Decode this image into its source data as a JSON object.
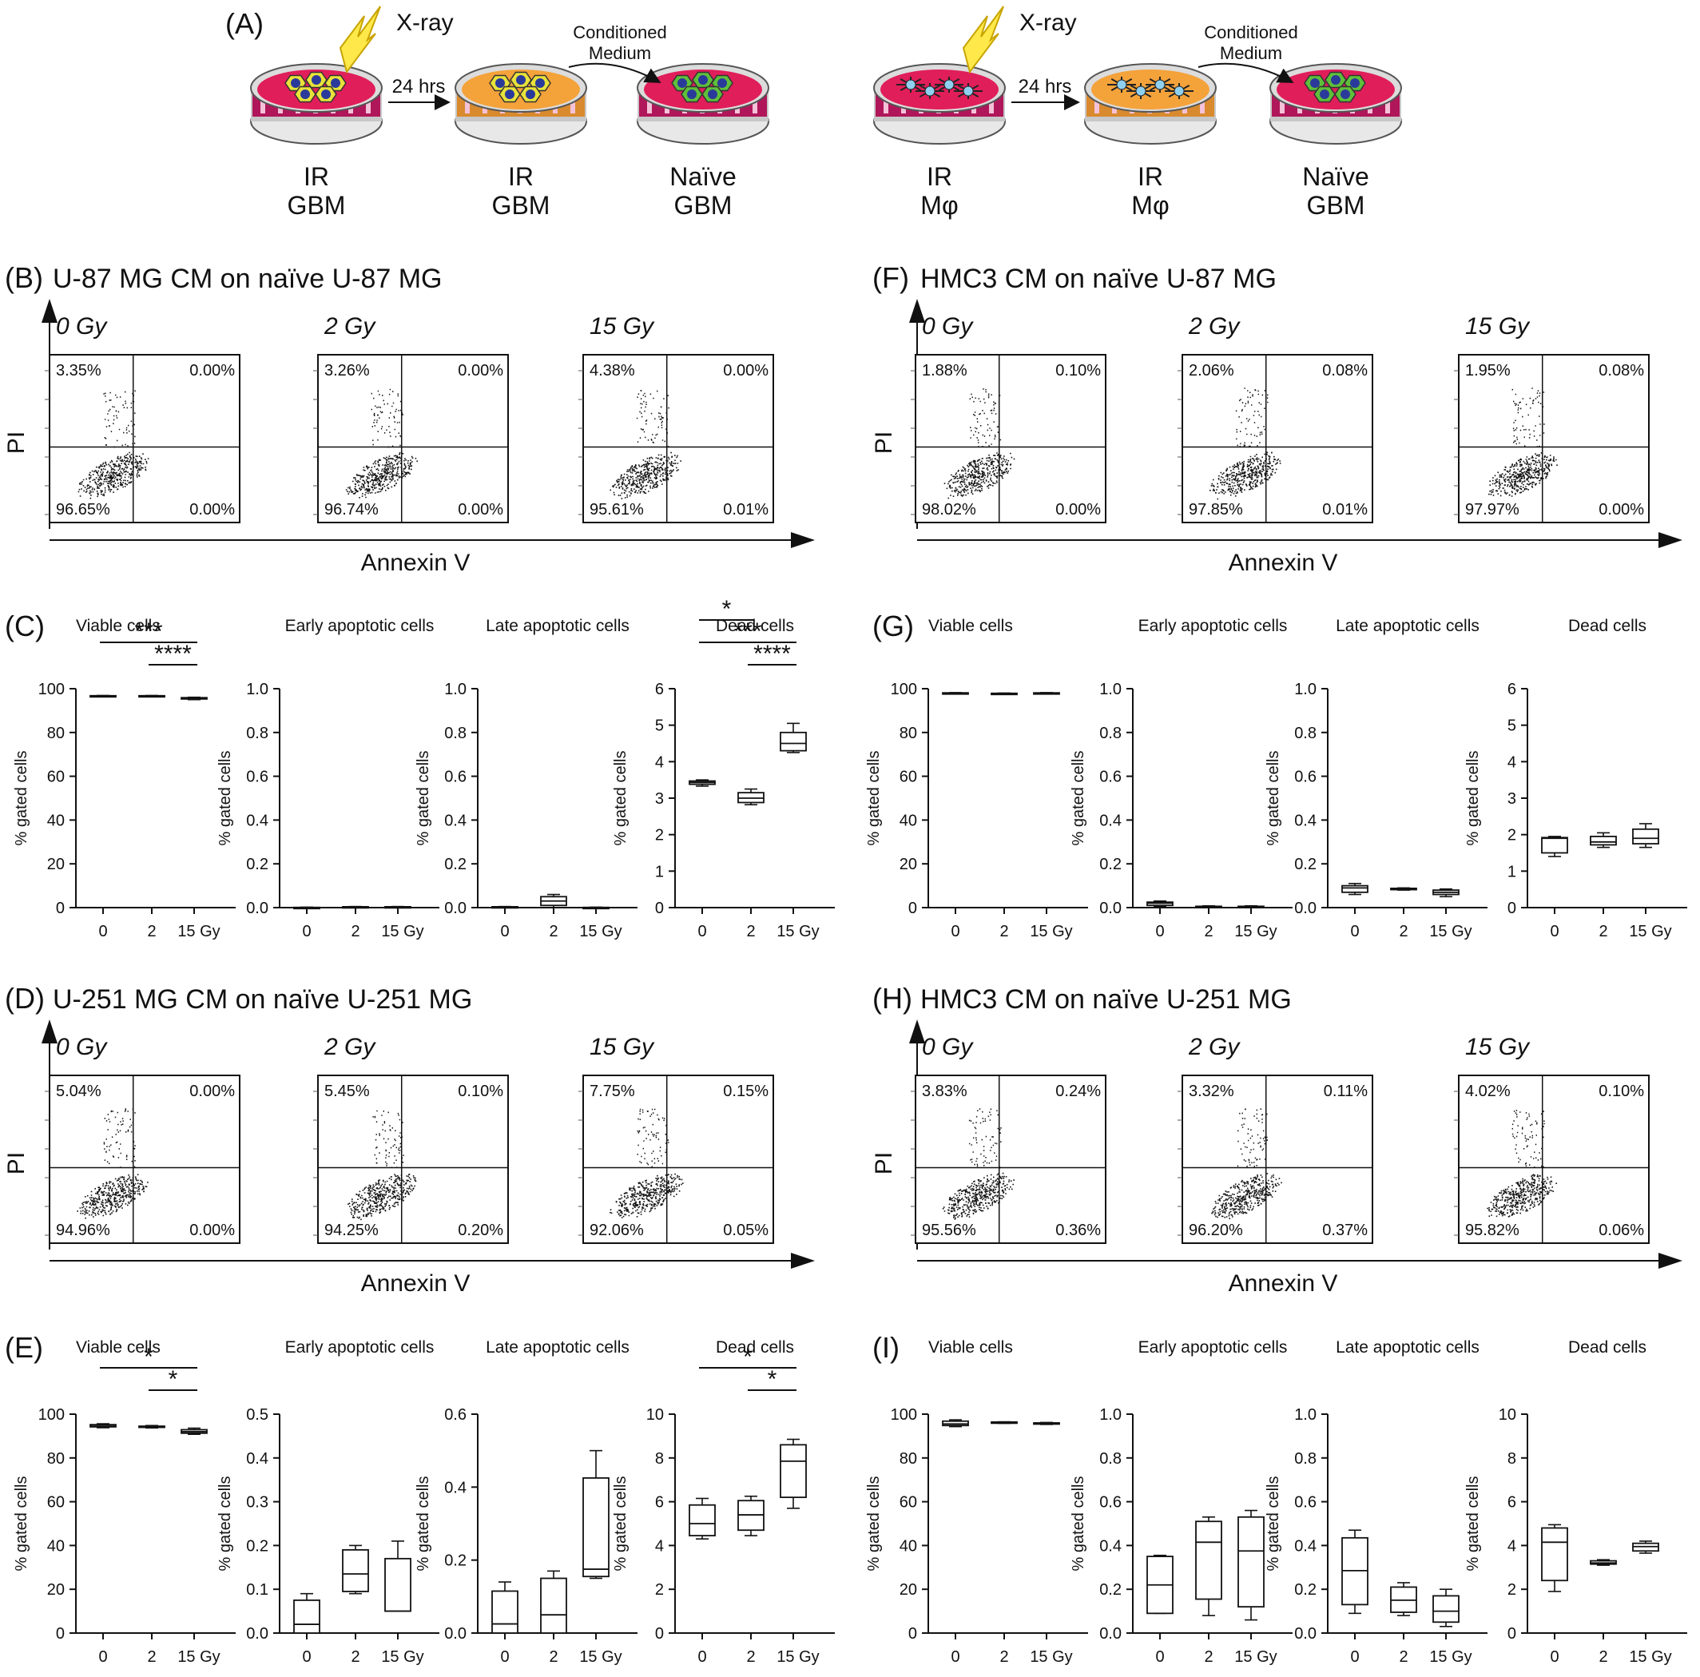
{
  "schematic": {
    "panel_label": "(A)",
    "xray": "X-ray",
    "time": "24 hrs",
    "cm_line1": "Conditioned",
    "cm_line2": "Medium",
    "left": [
      {
        "l1": "IR",
        "l2": "GBM"
      },
      {
        "l1": "IR",
        "l2": "GBM"
      },
      {
        "l1": "Naïve",
        "l2": "GBM"
      }
    ],
    "right": [
      {
        "l1": "IR",
        "l2": "Mφ"
      },
      {
        "l1": "IR",
        "l2": "Mφ"
      },
      {
        "l1": "Naïve",
        "l2": "GBM"
      }
    ]
  },
  "common": {
    "y_axis_flow": "PI",
    "x_axis_flow": "Annexin V",
    "y_axis_box": "% gated cells"
  },
  "flow_panels": [
    {
      "label": "(B)",
      "title": "U-87 MG CM on naïve U-87 MG",
      "plots": [
        {
          "dose": "0 Gy",
          "ul": "3.35%",
          "ur": "0.00%",
          "ll": "96.65%",
          "lr": "0.00%"
        },
        {
          "dose": "2 Gy",
          "ul": "3.26%",
          "ur": "0.00%",
          "ll": "96.74%",
          "lr": "0.00%"
        },
        {
          "dose": "15 Gy",
          "ul": "4.38%",
          "ur": "0.00%",
          "ll": "95.61%",
          "lr": "0.01%"
        }
      ]
    },
    {
      "label": "(F)",
      "title": "HMC3 CM on naïve U-87 MG",
      "plots": [
        {
          "dose": "0 Gy",
          "ul": "1.88%",
          "ur": "0.10%",
          "ll": "98.02%",
          "lr": "0.00%"
        },
        {
          "dose": "2 Gy",
          "ul": "2.06%",
          "ur": "0.08%",
          "ll": "97.85%",
          "lr": "0.01%"
        },
        {
          "dose": "15 Gy",
          "ul": "1.95%",
          "ur": "0.08%",
          "ll": "97.97%",
          "lr": "0.00%"
        }
      ]
    },
    {
      "label": "(D)",
      "title": "U-251 MG CM on naïve U-251 MG",
      "plots": [
        {
          "dose": "0 Gy",
          "ul": "5.04%",
          "ur": "0.00%",
          "ll": "94.96%",
          "lr": "0.00%"
        },
        {
          "dose": "2 Gy",
          "ul": "5.45%",
          "ur": "0.10%",
          "ll": "94.25%",
          "lr": "0.20%"
        },
        {
          "dose": "15 Gy",
          "ul": "7.75%",
          "ur": "0.15%",
          "ll": "92.06%",
          "lr": "0.05%"
        }
      ]
    },
    {
      "label": "(H)",
      "title": "HMC3 CM on naïve U-251 MG",
      "plots": [
        {
          "dose": "0 Gy",
          "ul": "3.83%",
          "ur": "0.24%",
          "ll": "95.56%",
          "lr": "0.36%"
        },
        {
          "dose": "2 Gy",
          "ul": "3.32%",
          "ur": "0.11%",
          "ll": "96.20%",
          "lr": "0.37%"
        },
        {
          "dose": "15 Gy",
          "ul": "4.02%",
          "ur": "0.10%",
          "ll": "95.82%",
          "lr": "0.06%"
        }
      ]
    }
  ],
  "chart_data": [
    {
      "panel": "(C)",
      "type": "box",
      "categories": [
        "0",
        "2",
        "15 Gy"
      ],
      "charts": [
        {
          "title": "Viable cells",
          "ylim": [
            0,
            100
          ],
          "yticks": [
            "0",
            "20",
            "40",
            "60",
            "80",
            "100"
          ],
          "boxes": [
            [
              96.4,
              96.5,
              96.65,
              96.8,
              96.9
            ],
            [
              96.6,
              96.7,
              96.74,
              96.8,
              96.9
            ],
            [
              95.0,
              95.3,
              95.6,
              95.9,
              96.1
            ]
          ],
          "sig": [
            {
              "from": 0,
              "to": 2,
              "stars": "***"
            },
            {
              "from": 1,
              "to": 2,
              "stars": "****"
            }
          ]
        },
        {
          "title": "Early apoptotic cells",
          "ylim": [
            0,
            1.0
          ],
          "yticks": [
            "0.0",
            "0.2",
            "0.4",
            "0.6",
            "0.8",
            "1.0"
          ],
          "boxes": [
            [
              0,
              0,
              0,
              0.001,
              0.002
            ],
            [
              0,
              0.001,
              0.002,
              0.004,
              0.005
            ],
            [
              0,
              0.001,
              0.002,
              0.004,
              0.005
            ]
          ],
          "sig": []
        },
        {
          "title": "Late apoptotic cells",
          "ylim": [
            0,
            1.0
          ],
          "yticks": [
            "0.0",
            "0.2",
            "0.4",
            "0.6",
            "0.8",
            "1.0"
          ],
          "boxes": [
            [
              0,
              0,
              0.002,
              0.004,
              0.005
            ],
            [
              0,
              0.01,
              0.03,
              0.05,
              0.06
            ],
            [
              0,
              0,
              0,
              0.001,
              0.002
            ]
          ],
          "sig": []
        },
        {
          "title": "Dead cells",
          "ylim": [
            0,
            6
          ],
          "yticks": [
            "0",
            "1",
            "2",
            "3",
            "4",
            "5",
            "6"
          ],
          "boxes": [
            [
              3.33,
              3.38,
              3.43,
              3.47,
              3.5
            ],
            [
              2.82,
              2.88,
              3.0,
              3.15,
              3.25
            ],
            [
              4.25,
              4.3,
              4.5,
              4.8,
              5.05
            ]
          ],
          "sig": [
            {
              "from": 0,
              "to": 1,
              "stars": "*"
            },
            {
              "from": 0,
              "to": 2,
              "stars": "***"
            },
            {
              "from": 1,
              "to": 2,
              "stars": "****"
            }
          ]
        }
      ]
    },
    {
      "panel": "(G)",
      "type": "box",
      "categories": [
        "0",
        "2",
        "15 Gy"
      ],
      "charts": [
        {
          "title": "Viable cells",
          "ylim": [
            0,
            100
          ],
          "yticks": [
            "0",
            "20",
            "40",
            "60",
            "80",
            "100"
          ],
          "boxes": [
            [
              97.8,
              97.9,
              98.0,
              98.1,
              98.2
            ],
            [
              97.7,
              97.8,
              97.85,
              97.9,
              98.0
            ],
            [
              97.6,
              97.8,
              97.95,
              98.1,
              98.2
            ]
          ],
          "sig": []
        },
        {
          "title": "Early apoptotic cells",
          "ylim": [
            0,
            1.0
          ],
          "yticks": [
            "0.0",
            "0.2",
            "0.4",
            "0.6",
            "0.8",
            "1.0"
          ],
          "boxes": [
            [
              0.005,
              0.01,
              0.02,
              0.025,
              0.03
            ],
            [
              0,
              0.002,
              0.004,
              0.006,
              0.008
            ],
            [
              0,
              0.002,
              0.004,
              0.006,
              0.008
            ]
          ],
          "sig": []
        },
        {
          "title": "Late apoptotic cells",
          "ylim": [
            0,
            1.0
          ],
          "yticks": [
            "0.0",
            "0.2",
            "0.4",
            "0.6",
            "0.8",
            "1.0"
          ],
          "boxes": [
            [
              0.06,
              0.07,
              0.09,
              0.1,
              0.11
            ],
            [
              0.08,
              0.082,
              0.085,
              0.088,
              0.09
            ],
            [
              0.05,
              0.06,
              0.07,
              0.08,
              0.085
            ]
          ],
          "sig": []
        },
        {
          "title": "Dead cells",
          "ylim": [
            0,
            6
          ],
          "yticks": [
            "0",
            "1",
            "2",
            "3",
            "4",
            "5",
            "6"
          ],
          "boxes": [
            [
              1.4,
              1.5,
              1.9,
              1.92,
              1.95
            ],
            [
              1.65,
              1.72,
              1.8,
              1.95,
              2.05
            ],
            [
              1.65,
              1.75,
              1.9,
              2.15,
              2.3
            ]
          ],
          "sig": []
        }
      ]
    },
    {
      "panel": "(E)",
      "type": "box",
      "categories": [
        "0",
        "2",
        "15 Gy"
      ],
      "charts": [
        {
          "title": "Viable cells",
          "ylim": [
            0,
            100
          ],
          "yticks": [
            "0",
            "20",
            "40",
            "60",
            "80",
            "100"
          ],
          "boxes": [
            [
              93.8,
              94.2,
              94.9,
              95.2,
              95.6
            ],
            [
              93.7,
              94.0,
              94.3,
              94.5,
              94.8
            ],
            [
              90.8,
              91.3,
              92.0,
              92.9,
              93.6
            ]
          ],
          "sig": [
            {
              "from": 0,
              "to": 2,
              "stars": "*"
            },
            {
              "from": 1,
              "to": 2,
              "stars": "*"
            }
          ]
        },
        {
          "title": "Early apoptotic cells",
          "ylim": [
            0,
            0.5
          ],
          "yticks": [
            "0.0",
            "0.1",
            "0.2",
            "0.3",
            "0.4",
            "0.5"
          ],
          "boxes": [
            [
              0,
              0,
              0.02,
              0.075,
              0.09
            ],
            [
              0.09,
              0.095,
              0.135,
              0.19,
              0.2
            ],
            [
              0.05,
              0.05,
              0.05,
              0.17,
              0.21
            ]
          ],
          "sig": []
        },
        {
          "title": "Late apoptotic cells",
          "ylim": [
            0,
            0.6
          ],
          "yticks": [
            "0.0",
            "0.2",
            "0.4",
            "0.6"
          ],
          "boxes": [
            [
              0,
              0,
              0.025,
              0.115,
              0.14
            ],
            [
              0,
              0,
              0.05,
              0.15,
              0.17
            ],
            [
              0.15,
              0.155,
              0.175,
              0.425,
              0.5
            ]
          ],
          "sig": []
        },
        {
          "title": "Dead cells",
          "ylim": [
            0,
            10
          ],
          "yticks": [
            "0",
            "2",
            "4",
            "6",
            "8",
            "10"
          ],
          "boxes": [
            [
              4.3,
              4.45,
              5.0,
              5.85,
              6.15
            ],
            [
              4.45,
              4.7,
              5.4,
              6.05,
              6.25
            ],
            [
              5.7,
              6.2,
              7.85,
              8.6,
              8.85
            ]
          ],
          "sig": [
            {
              "from": 0,
              "to": 2,
              "stars": "*"
            },
            {
              "from": 1,
              "to": 2,
              "stars": "*"
            }
          ]
        }
      ]
    },
    {
      "panel": "(I)",
      "type": "box",
      "categories": [
        "0",
        "2",
        "15 Gy"
      ],
      "charts": [
        {
          "title": "Viable cells",
          "ylim": [
            0,
            100
          ],
          "yticks": [
            "0",
            "20",
            "40",
            "60",
            "80",
            "100"
          ],
          "boxes": [
            [
              94.3,
              94.8,
              95.5,
              96.8,
              97.4
            ],
            [
              95.8,
              95.95,
              96.2,
              96.4,
              96.5
            ],
            [
              95.3,
              95.5,
              95.8,
              96.0,
              96.2
            ]
          ],
          "sig": []
        },
        {
          "title": "Early apoptotic cells",
          "ylim": [
            0,
            1.0
          ],
          "yticks": [
            "0.0",
            "0.2",
            "0.4",
            "0.6",
            "0.8",
            "1.0"
          ],
          "boxes": [
            [
              0.09,
              0.09,
              0.22,
              0.35,
              0.355
            ],
            [
              0.08,
              0.155,
              0.415,
              0.51,
              0.53
            ],
            [
              0.06,
              0.12,
              0.375,
              0.53,
              0.56
            ]
          ],
          "sig": []
        },
        {
          "title": "Late apoptotic cells",
          "ylim": [
            0,
            1.0
          ],
          "yticks": [
            "0.0",
            "0.2",
            "0.4",
            "0.6",
            "0.8",
            "1.0"
          ],
          "boxes": [
            [
              0.09,
              0.13,
              0.285,
              0.435,
              0.47
            ],
            [
              0.08,
              0.095,
              0.15,
              0.21,
              0.23
            ],
            [
              0.03,
              0.05,
              0.1,
              0.17,
              0.2
            ]
          ],
          "sig": []
        },
        {
          "title": "Dead cells",
          "ylim": [
            0,
            10
          ],
          "yticks": [
            "0",
            "2",
            "4",
            "6",
            "8",
            "10"
          ],
          "boxes": [
            [
              1.9,
              2.4,
              4.15,
              4.8,
              4.95
            ],
            [
              3.1,
              3.15,
              3.2,
              3.3,
              3.35
            ],
            [
              3.65,
              3.75,
              3.95,
              4.1,
              4.2
            ]
          ],
          "sig": []
        }
      ]
    }
  ]
}
